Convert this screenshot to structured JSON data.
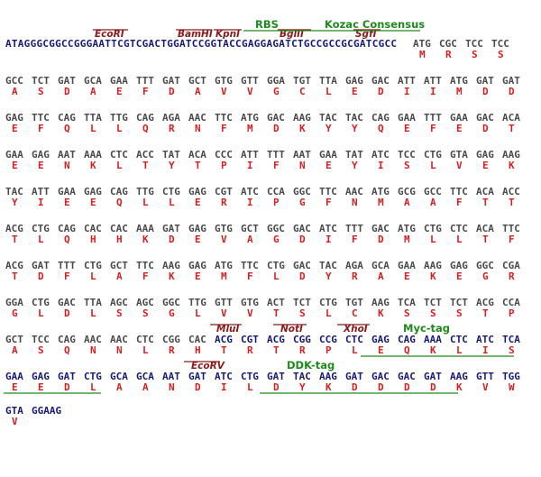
{
  "top_annotations": {
    "enzymes": [
      "EcoRI",
      "BamHI",
      "KpnI",
      "BglII",
      "SgfI"
    ],
    "tags": [
      "RBS",
      "Kozac Consensus"
    ]
  },
  "header_line": {
    "sequence": "ATAGGGCGGCCGGGAATTCGTCGACTGGATCCGGTACCGAGGAGATCTGCCGCCGCGATCGCC",
    "codons": [
      "ATG",
      "CGC",
      "TCC",
      "TCC"
    ],
    "amino_acids": [
      "M",
      "R",
      "S",
      "S"
    ]
  },
  "rows": [
    {
      "codons": [
        "GCC",
        "TCT",
        "GAT",
        "GCA",
        "GAA",
        "TTT",
        "GAT",
        "GCT",
        "GTG",
        "GTT",
        "GGA",
        "TGT",
        "TTA",
        "GAG",
        "GAC",
        "ATT",
        "ATT",
        "ATG",
        "GAT",
        "GAT"
      ],
      "amino_acids": [
        "A",
        "S",
        "D",
        "A",
        "E",
        "F",
        "D",
        "A",
        "V",
        "V",
        "G",
        "C",
        "L",
        "E",
        "D",
        "I",
        "I",
        "M",
        "D",
        "D"
      ]
    },
    {
      "codons": [
        "GAG",
        "TTC",
        "CAG",
        "TTA",
        "TTG",
        "CAG",
        "AGA",
        "AAC",
        "TTC",
        "ATG",
        "GAC",
        "AAG",
        "TAC",
        "TAC",
        "CAG",
        "GAA",
        "TTT",
        "GAA",
        "GAC",
        "ACA"
      ],
      "amino_acids": [
        "E",
        "F",
        "Q",
        "L",
        "L",
        "Q",
        "R",
        "N",
        "F",
        "M",
        "D",
        "K",
        "Y",
        "Y",
        "Q",
        "E",
        "F",
        "E",
        "D",
        "T"
      ]
    },
    {
      "codons": [
        "GAA",
        "GAG",
        "AAT",
        "AAA",
        "CTC",
        "ACC",
        "TAT",
        "ACA",
        "CCC",
        "ATT",
        "TTT",
        "AAT",
        "GAA",
        "TAT",
        "ATC",
        "TCC",
        "CTG",
        "GTA",
        "GAG",
        "AAG"
      ],
      "amino_acids": [
        "E",
        "E",
        "N",
        "K",
        "L",
        "T",
        "Y",
        "T",
        "P",
        "I",
        "F",
        "N",
        "E",
        "Y",
        "I",
        "S",
        "L",
        "V",
        "E",
        "K"
      ]
    },
    {
      "codons": [
        "TAC",
        "ATT",
        "GAA",
        "GAG",
        "CAG",
        "TTG",
        "CTG",
        "GAG",
        "CGT",
        "ATC",
        "CCA",
        "GGC",
        "TTC",
        "AAC",
        "ATG",
        "GCG",
        "GCC",
        "TTC",
        "ACA",
        "ACC"
      ],
      "amino_acids": [
        "Y",
        "I",
        "E",
        "E",
        "Q",
        "L",
        "L",
        "E",
        "R",
        "I",
        "P",
        "G",
        "F",
        "N",
        "M",
        "A",
        "A",
        "F",
        "T",
        "T"
      ]
    },
    {
      "codons": [
        "ACG",
        "CTG",
        "CAG",
        "CAC",
        "CAC",
        "AAA",
        "GAT",
        "GAG",
        "GTG",
        "GCT",
        "GGC",
        "GAC",
        "ATC",
        "TTT",
        "GAC",
        "ATG",
        "CTG",
        "CTC",
        "ACA",
        "TTC"
      ],
      "amino_acids": [
        "T",
        "L",
        "Q",
        "H",
        "H",
        "K",
        "D",
        "E",
        "V",
        "A",
        "G",
        "D",
        "I",
        "F",
        "D",
        "M",
        "L",
        "L",
        "T",
        "F"
      ]
    },
    {
      "codons": [
        "ACG",
        "GAT",
        "TTT",
        "CTG",
        "GCT",
        "TTC",
        "AAG",
        "GAG",
        "ATG",
        "TTC",
        "CTG",
        "GAC",
        "TAC",
        "AGA",
        "GCA",
        "GAA",
        "AAG",
        "GAG",
        "GGC",
        "CGA"
      ],
      "amino_acids": [
        "T",
        "D",
        "F",
        "L",
        "A",
        "F",
        "K",
        "E",
        "M",
        "F",
        "L",
        "D",
        "Y",
        "R",
        "A",
        "E",
        "K",
        "E",
        "G",
        "R"
      ]
    },
    {
      "codons": [
        "GGA",
        "CTG",
        "GAC",
        "TTA",
        "AGC",
        "AGC",
        "GGC",
        "TTG",
        "GTT",
        "GTG",
        "ACT",
        "TCT",
        "CTG",
        "TGT",
        "AAG",
        "TCA",
        "TCT",
        "TCT",
        "ACG",
        "CCA"
      ],
      "amino_acids": [
        "G",
        "L",
        "D",
        "L",
        "S",
        "S",
        "G",
        "L",
        "V",
        "V",
        "T",
        "S",
        "L",
        "C",
        "K",
        "S",
        "S",
        "S",
        "T",
        "P"
      ]
    },
    {
      "codons": [
        "GCT",
        "TCC",
        "CAG",
        "AAC",
        "AAC",
        "CTC",
        "CGG",
        "CAC",
        "ACG",
        "CGT",
        "ACG",
        "CGG",
        "CCG",
        "CTC",
        "GAG",
        "CAG",
        "AAA",
        "CTC",
        "ATC",
        "TCA"
      ],
      "amino_acids": [
        "A",
        "S",
        "Q",
        "N",
        "N",
        "L",
        "R",
        "H",
        "T",
        "R",
        "T",
        "R",
        "P",
        "L",
        "E",
        "Q",
        "K",
        "L",
        "I",
        "S"
      ],
      "annotations": [
        "MluI",
        "NotI",
        "XhoI",
        "Myc-tag"
      ]
    },
    {
      "codons": [
        "GAA",
        "GAG",
        "GAT",
        "CTG",
        "GCA",
        "GCA",
        "AAT",
        "GAT",
        "ATC",
        "CTG",
        "GAT",
        "TAC",
        "AAG",
        "GAT",
        "GAC",
        "GAC",
        "GAT",
        "AAG",
        "GTT",
        "TGG"
      ],
      "amino_acids": [
        "E",
        "E",
        "D",
        "L",
        "A",
        "A",
        "N",
        "D",
        "I",
        "L",
        "D",
        "Y",
        "K",
        "D",
        "D",
        "D",
        "D",
        "K",
        "V",
        "W"
      ],
      "annotations": [
        "EcoRV",
        "DDK-tag"
      ]
    },
    {
      "codons": [
        "GTA",
        "GGAAG"
      ],
      "amino_acids": [
        "V"
      ]
    }
  ]
}
